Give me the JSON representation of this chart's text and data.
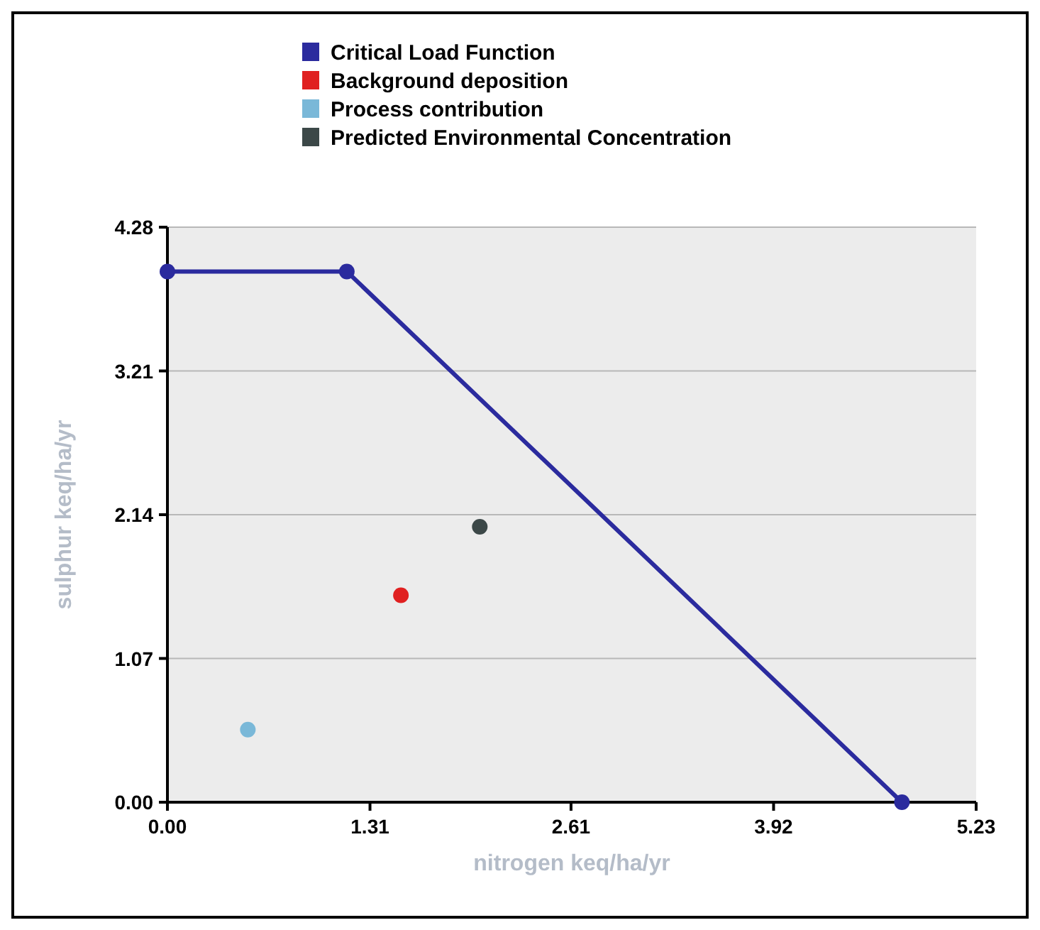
{
  "chart_data": {
    "type": "scatter",
    "xlabel": "nitrogen keq/ha/yr",
    "ylabel": "sulphur keq/ha/yr",
    "xlim": [
      0,
      5.23
    ],
    "xticks": [
      {
        "value": 0,
        "label": "0.00"
      },
      1.31,
      2.61,
      3.92,
      5.23
    ],
    "ylim": [
      0,
      4.28
    ],
    "yticks": [
      {
        "value": 0,
        "label": "0.00"
      },
      1.07,
      2.14,
      3.21,
      4.28
    ],
    "grid": "y",
    "legend": "top",
    "marker": "circle",
    "series": [
      {
        "name": "Critical Load Function",
        "type": "line",
        "color": "#2b2b9e",
        "x": [
          0,
          1.16,
          4.75
        ],
        "values": [
          3.95,
          3.95,
          0
        ]
      },
      {
        "name": "Background deposition",
        "color": "#e02020",
        "x": [
          1.51
        ],
        "values": [
          1.54
        ]
      },
      {
        "name": "Process contribution",
        "color": "#7ab8d8",
        "x": [
          0.52
        ],
        "values": [
          0.54
        ]
      },
      {
        "name": "Predicted Environmental Concentration",
        "color": "#3c4848",
        "x": [
          2.02
        ],
        "values": [
          2.05
        ]
      }
    ]
  }
}
